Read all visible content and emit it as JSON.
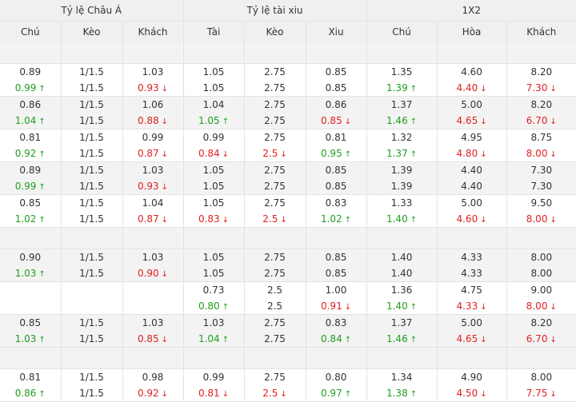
{
  "header": {
    "groups": [
      "Tỷ lệ Châu Á",
      "Tỷ lệ tài xiu",
      "1X2"
    ],
    "columns": [
      "Chú",
      "Kèo",
      "Khách",
      "Tài",
      "Kèo",
      "Xiu",
      "Chú",
      "Hòa",
      "Khách"
    ]
  },
  "colors": {
    "up": "#1e9e1e",
    "down": "#e02020",
    "header_bg": "#f0f0f0",
    "alt_row_bg": "#f3f3f3"
  },
  "icons": {
    "up": "arrow-up-icon",
    "down": "arrow-down-icon"
  },
  "rows": [
    {
      "blank": true
    },
    {
      "cells": [
        [
          {
            "v": "0.89"
          },
          {
            "v": "0.99",
            "t": "up"
          }
        ],
        [
          {
            "v": "1/1.5"
          },
          {
            "v": "1/1.5"
          }
        ],
        [
          {
            "v": "1.03"
          },
          {
            "v": "0.93",
            "t": "down"
          }
        ],
        [
          {
            "v": "1.05"
          },
          {
            "v": "1.05"
          }
        ],
        [
          {
            "v": "2.75"
          },
          {
            "v": "2.75"
          }
        ],
        [
          {
            "v": "0.85"
          },
          {
            "v": "0.85"
          }
        ],
        [
          {
            "v": "1.35"
          },
          {
            "v": "1.39",
            "t": "up"
          }
        ],
        [
          {
            "v": "4.60"
          },
          {
            "v": "4.40",
            "t": "down"
          }
        ],
        [
          {
            "v": "8.20"
          },
          {
            "v": "7.30",
            "t": "down"
          }
        ]
      ]
    },
    {
      "cells": [
        [
          {
            "v": "0.86"
          },
          {
            "v": "1.04",
            "t": "up"
          }
        ],
        [
          {
            "v": "1/1.5"
          },
          {
            "v": "1/1.5"
          }
        ],
        [
          {
            "v": "1.06"
          },
          {
            "v": "0.88",
            "t": "down"
          }
        ],
        [
          {
            "v": "1.04"
          },
          {
            "v": "1.05",
            "t": "up"
          }
        ],
        [
          {
            "v": "2.75"
          },
          {
            "v": "2.75"
          }
        ],
        [
          {
            "v": "0.86"
          },
          {
            "v": "0.85",
            "t": "down"
          }
        ],
        [
          {
            "v": "1.37"
          },
          {
            "v": "1.46",
            "t": "up"
          }
        ],
        [
          {
            "v": "5.00"
          },
          {
            "v": "4.65",
            "t": "down"
          }
        ],
        [
          {
            "v": "8.20"
          },
          {
            "v": "6.70",
            "t": "down"
          }
        ]
      ]
    },
    {
      "cells": [
        [
          {
            "v": "0.81"
          },
          {
            "v": "0.92",
            "t": "up"
          }
        ],
        [
          {
            "v": "1/1.5"
          },
          {
            "v": "1/1.5"
          }
        ],
        [
          {
            "v": "0.99"
          },
          {
            "v": "0.87",
            "t": "down"
          }
        ],
        [
          {
            "v": "0.99"
          },
          {
            "v": "0.84",
            "t": "down"
          }
        ],
        [
          {
            "v": "2.75"
          },
          {
            "v": "2.5",
            "t": "down"
          }
        ],
        [
          {
            "v": "0.81"
          },
          {
            "v": "0.95",
            "t": "up"
          }
        ],
        [
          {
            "v": "1.32"
          },
          {
            "v": "1.37",
            "t": "up"
          }
        ],
        [
          {
            "v": "4.95"
          },
          {
            "v": "4.80",
            "t": "down"
          }
        ],
        [
          {
            "v": "8.75"
          },
          {
            "v": "8.00",
            "t": "down"
          }
        ]
      ]
    },
    {
      "cells": [
        [
          {
            "v": "0.89"
          },
          {
            "v": "0.99",
            "t": "up"
          }
        ],
        [
          {
            "v": "1/1.5"
          },
          {
            "v": "1/1.5"
          }
        ],
        [
          {
            "v": "1.03"
          },
          {
            "v": "0.93",
            "t": "down"
          }
        ],
        [
          {
            "v": "1.05"
          },
          {
            "v": "1.05"
          }
        ],
        [
          {
            "v": "2.75"
          },
          {
            "v": "2.75"
          }
        ],
        [
          {
            "v": "0.85"
          },
          {
            "v": "0.85"
          }
        ],
        [
          {
            "v": "1.39"
          },
          {
            "v": "1.39"
          }
        ],
        [
          {
            "v": "4.40"
          },
          {
            "v": "4.40"
          }
        ],
        [
          {
            "v": "7.30"
          },
          {
            "v": "7.30"
          }
        ]
      ]
    },
    {
      "cells": [
        [
          {
            "v": "0.85"
          },
          {
            "v": "1.02",
            "t": "up"
          }
        ],
        [
          {
            "v": "1/1.5"
          },
          {
            "v": "1/1.5"
          }
        ],
        [
          {
            "v": "1.04"
          },
          {
            "v": "0.87",
            "t": "down"
          }
        ],
        [
          {
            "v": "1.05"
          },
          {
            "v": "0.83",
            "t": "down"
          }
        ],
        [
          {
            "v": "2.75"
          },
          {
            "v": "2.5",
            "t": "down"
          }
        ],
        [
          {
            "v": "0.83"
          },
          {
            "v": "1.02",
            "t": "up"
          }
        ],
        [
          {
            "v": "1.33"
          },
          {
            "v": "1.40",
            "t": "up"
          }
        ],
        [
          {
            "v": "5.00"
          },
          {
            "v": "4.60",
            "t": "down"
          }
        ],
        [
          {
            "v": "9.50"
          },
          {
            "v": "8.00",
            "t": "down"
          }
        ]
      ]
    },
    {
      "blank": true
    },
    {
      "cells": [
        [
          {
            "v": "0.90"
          },
          {
            "v": "1.03",
            "t": "up"
          }
        ],
        [
          {
            "v": "1/1.5"
          },
          {
            "v": "1/1.5"
          }
        ],
        [
          {
            "v": "1.03"
          },
          {
            "v": "0.90",
            "t": "down"
          }
        ],
        [
          {
            "v": "1.05"
          },
          {
            "v": "1.05"
          }
        ],
        [
          {
            "v": "2.75"
          },
          {
            "v": "2.75"
          }
        ],
        [
          {
            "v": "0.85"
          },
          {
            "v": "0.85"
          }
        ],
        [
          {
            "v": "1.40"
          },
          {
            "v": "1.40"
          }
        ],
        [
          {
            "v": "4.33"
          },
          {
            "v": "4.33"
          }
        ],
        [
          {
            "v": "8.00"
          },
          {
            "v": "8.00"
          }
        ]
      ]
    },
    {
      "cells": [
        [],
        [],
        [],
        [
          {
            "v": "0.73"
          },
          {
            "v": "0.80",
            "t": "up"
          }
        ],
        [
          {
            "v": "2.5"
          },
          {
            "v": "2.5"
          }
        ],
        [
          {
            "v": "1.00"
          },
          {
            "v": "0.91",
            "t": "down"
          }
        ],
        [
          {
            "v": "1.36"
          },
          {
            "v": "1.40",
            "t": "up"
          }
        ],
        [
          {
            "v": "4.75"
          },
          {
            "v": "4.33",
            "t": "down"
          }
        ],
        [
          {
            "v": "9.00"
          },
          {
            "v": "8.00",
            "t": "down"
          }
        ]
      ]
    },
    {
      "cells": [
        [
          {
            "v": "0.85"
          },
          {
            "v": "1.03",
            "t": "up"
          }
        ],
        [
          {
            "v": "1/1.5"
          },
          {
            "v": "1/1.5"
          }
        ],
        [
          {
            "v": "1.03"
          },
          {
            "v": "0.85",
            "t": "down"
          }
        ],
        [
          {
            "v": "1.03"
          },
          {
            "v": "1.04",
            "t": "up"
          }
        ],
        [
          {
            "v": "2.75"
          },
          {
            "v": "2.75"
          }
        ],
        [
          {
            "v": "0.83"
          },
          {
            "v": "0.84",
            "t": "up"
          }
        ],
        [
          {
            "v": "1.37"
          },
          {
            "v": "1.46",
            "t": "up"
          }
        ],
        [
          {
            "v": "5.00"
          },
          {
            "v": "4.65",
            "t": "down"
          }
        ],
        [
          {
            "v": "8.20"
          },
          {
            "v": "6.70",
            "t": "down"
          }
        ]
      ]
    },
    {
      "blank": true
    },
    {
      "cells": [
        [
          {
            "v": "0.81"
          },
          {
            "v": "0.86",
            "t": "up"
          }
        ],
        [
          {
            "v": "1/1.5"
          },
          {
            "v": "1/1.5"
          }
        ],
        [
          {
            "v": "0.98"
          },
          {
            "v": "0.92",
            "t": "down"
          }
        ],
        [
          {
            "v": "0.99"
          },
          {
            "v": "0.81",
            "t": "down"
          }
        ],
        [
          {
            "v": "2.75"
          },
          {
            "v": "2.5",
            "t": "down"
          }
        ],
        [
          {
            "v": "0.80"
          },
          {
            "v": "0.97",
            "t": "up"
          }
        ],
        [
          {
            "v": "1.34"
          },
          {
            "v": "1.38",
            "t": "up"
          }
        ],
        [
          {
            "v": "4.90"
          },
          {
            "v": "4.50",
            "t": "down"
          }
        ],
        [
          {
            "v": "8.00"
          },
          {
            "v": "7.75",
            "t": "down"
          }
        ]
      ]
    }
  ]
}
